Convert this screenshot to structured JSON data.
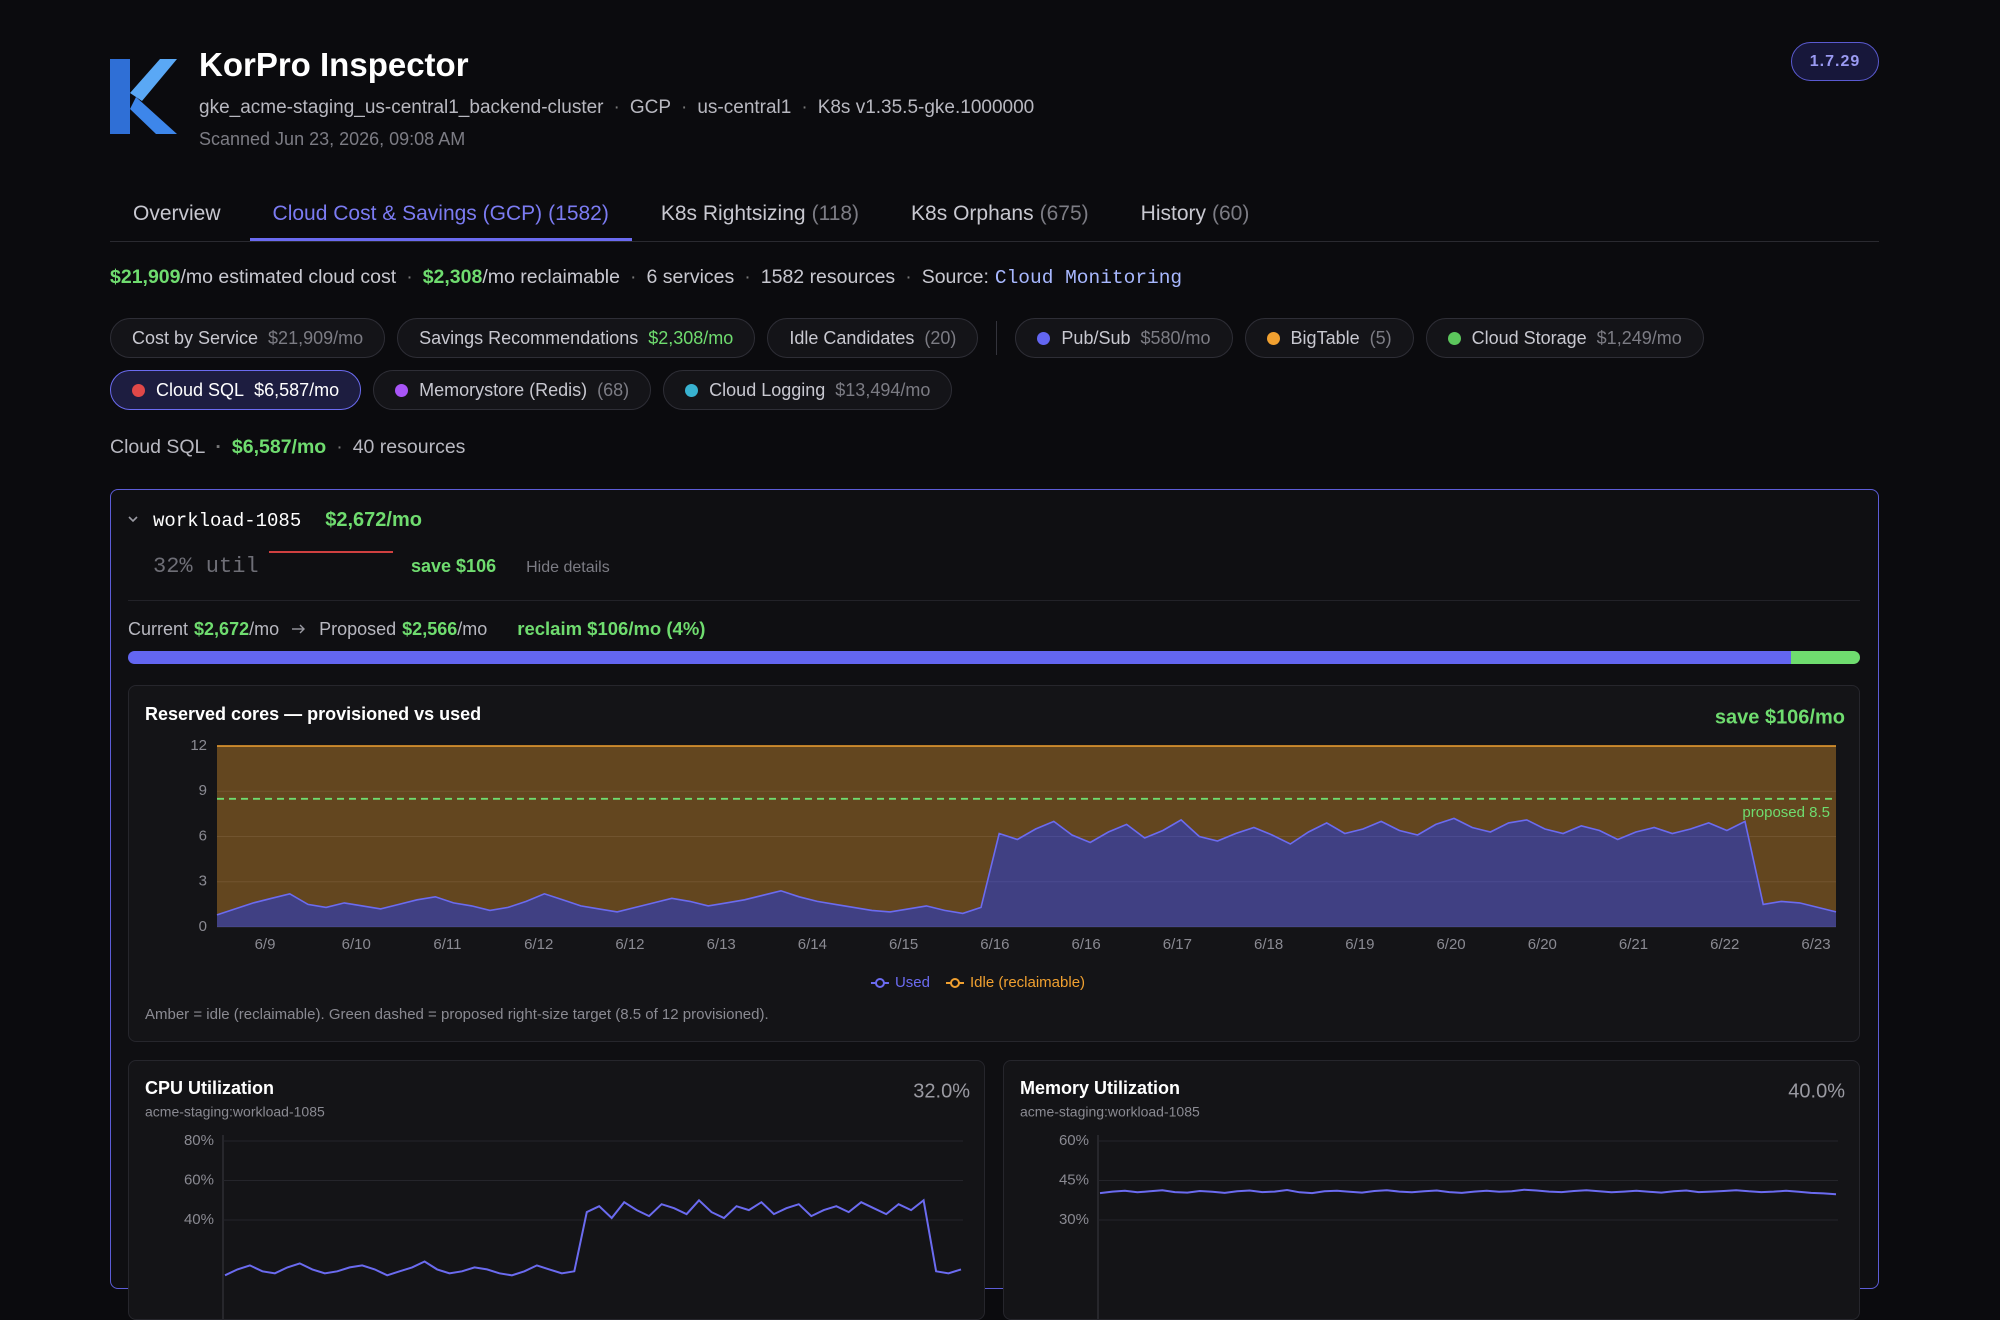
{
  "header": {
    "title": "KorPro Inspector",
    "meta": [
      "gke_acme-staging_us-central1_backend-cluster",
      "GCP",
      "us-central1",
      "K8s v1.35.5-gke.1000000"
    ],
    "scanned": "Scanned Jun 23, 2026, 09:08 AM",
    "version": "1.7.29"
  },
  "tabs": [
    {
      "label": "Overview"
    },
    {
      "label": "Cloud Cost & Savings (GCP)",
      "count": "(1582)",
      "active": true
    },
    {
      "label": "K8s Rightsizing",
      "count": "(118)"
    },
    {
      "label": "K8s Orphans",
      "count": "(675)"
    },
    {
      "label": "History",
      "count": "(60)"
    }
  ],
  "summary": {
    "cost": "$21,909",
    "cost_suffix": "/mo estimated cloud cost",
    "reclaim": "$2,308",
    "reclaim_suffix": "/mo reclaimable",
    "services": "6 services",
    "resources": "1582 resources",
    "source_label": "Source:",
    "source": "Cloud Monitoring"
  },
  "chips": [
    {
      "label": "Cost by Service",
      "value": "$21,909/mo"
    },
    {
      "label": "Savings Recommendations",
      "value": "$2,308/mo",
      "highlight": true
    },
    {
      "label": "Idle Candidates",
      "value": "(20)",
      "separator_after": true
    },
    {
      "label": "Pub/Sub",
      "value": "$580/mo",
      "dot": "#6366f1"
    },
    {
      "label": "BigTable",
      "value": "(5)",
      "dot": "#f0a030"
    },
    {
      "label": "Cloud Storage",
      "value": "$1,249/mo",
      "dot": "#5cc65c"
    },
    {
      "label": "Cloud SQL",
      "value": "$6,587/mo",
      "dot": "#e04848",
      "active": true
    },
    {
      "label": "Memorystore (Redis)",
      "value": "(68)",
      "dot": "#a855f7"
    },
    {
      "label": "Cloud Logging",
      "value": "$13,494/mo",
      "dot": "#38b2d0"
    }
  ],
  "section": {
    "name": "Cloud SQL",
    "cost": "$6,587/mo",
    "resources": "40 resources"
  },
  "workload": {
    "name": "workload-1085",
    "cost": "$2,672/mo",
    "util": "32% util",
    "save": "save $106",
    "toggle": "Hide details",
    "current_label": "Current",
    "current": "$2,672",
    "per": "/mo",
    "proposed_label": "Proposed",
    "proposed": "$2,566",
    "reclaim": "reclaim $106/mo (4%)"
  },
  "progress": {
    "proposed": 2566,
    "reclaim": 106,
    "color": "#6366f1",
    "reclaim_color": "#6fdc6f"
  },
  "chart_data": [
    {
      "type": "area",
      "title": "Reserved cores — provisioned vs used",
      "annotation": "save $106/mo",
      "series": [
        {
          "name": "Used",
          "color": "#6b6bf0",
          "values": [
            0.8,
            1.2,
            1.6,
            1.9,
            2.2,
            1.5,
            1.3,
            1.6,
            1.4,
            1.2,
            1.5,
            1.8,
            2.0,
            1.6,
            1.4,
            1.1,
            1.3,
            1.7,
            2.2,
            1.8,
            1.4,
            1.2,
            1.0,
            1.3,
            1.6,
            1.9,
            1.7,
            1.4,
            1.6,
            1.8,
            2.1,
            2.4,
            2.0,
            1.7,
            1.5,
            1.3,
            1.1,
            1.0,
            1.2,
            1.4,
            1.1,
            0.9,
            1.3,
            6.2,
            5.8,
            6.5,
            7.0,
            6.1,
            5.6,
            6.3,
            6.8,
            5.9,
            6.4,
            7.1,
            6.0,
            5.7,
            6.2,
            6.6,
            6.1,
            5.5,
            6.3,
            6.9,
            6.2,
            6.5,
            7.0,
            6.4,
            6.1,
            6.8,
            7.2,
            6.6,
            6.3,
            6.9,
            7.1,
            6.5,
            6.2,
            6.7,
            6.4,
            5.8,
            6.3,
            6.6,
            6.2,
            6.5,
            6.9,
            6.4,
            7.0,
            1.5,
            1.7,
            1.6,
            1.3,
            1.0
          ]
        }
      ],
      "idle": {
        "name": "Idle (reclaimable)",
        "color": "#f0a030"
      },
      "provisioned": 12,
      "proposed": 8.5,
      "proposed_label": "proposed 8.5",
      "proposed_color": "#6fdc6f",
      "ylim": [
        0,
        12
      ],
      "yticks": [
        0,
        3,
        6,
        9,
        12
      ],
      "xtick_labels": [
        "6/9",
        "6/10",
        "6/11",
        "6/12",
        "6/12",
        "6/13",
        "6/14",
        "6/15",
        "6/16",
        "6/16",
        "6/17",
        "6/18",
        "6/19",
        "6/20",
        "6/20",
        "6/21",
        "6/22",
        "6/23"
      ],
      "grid": true,
      "note": "Amber = idle (reclaimable). Green dashed = proposed right-size target (8.5 of 12 provisioned)."
    },
    {
      "type": "line",
      "title": "CPU Utilization",
      "subtitle": "acme-staging:workload-1085",
      "value_label": "32.0%",
      "color": "#6b6bf0",
      "values": [
        12,
        15,
        17,
        14,
        13,
        16,
        18,
        15,
        13,
        14,
        16,
        17,
        15,
        12,
        14,
        16,
        19,
        15,
        13,
        14,
        16,
        15,
        13,
        12,
        14,
        17,
        15,
        13,
        14,
        44,
        47,
        41,
        49,
        45,
        42,
        48,
        46,
        43,
        50,
        44,
        41,
        47,
        45,
        49,
        43,
        46,
        48,
        42,
        45,
        47,
        44,
        49,
        46,
        43,
        48,
        45,
        50,
        14,
        13,
        15
      ],
      "ylim": [
        0,
        80
      ],
      "yticks": [
        {
          "value": 80,
          "label": "80%"
        },
        {
          "value": 60,
          "label": "60%"
        },
        {
          "value": 40,
          "label": "40%"
        }
      ],
      "grid": true
    },
    {
      "type": "line",
      "title": "Memory Utilization",
      "subtitle": "acme-staging:workload-1085",
      "value_label": "40.0%",
      "color": "#6b6bf0",
      "values": [
        40.2,
        40.8,
        41.1,
        40.5,
        40.9,
        41.3,
        40.6,
        40.4,
        41.0,
        40.7,
        40.3,
        40.9,
        41.2,
        40.6,
        40.8,
        41.4,
        40.5,
        40.2,
        40.9,
        41.1,
        40.7,
        40.4,
        41.0,
        41.3,
        40.8,
        40.5,
        40.9,
        41.2,
        40.6,
        40.3,
        40.8,
        41.1,
        40.7,
        40.9,
        41.5,
        41.2,
        40.8,
        40.6,
        41.0,
        41.3,
        40.9,
        40.5,
        40.8,
        41.1,
        40.7,
        40.4,
        40.9,
        41.2,
        40.6,
        40.8,
        41.0,
        41.3,
        40.9,
        40.6,
        40.8,
        41.1,
        40.7,
        40.3,
        40.1,
        39.8
      ],
      "ylim": [
        0,
        60
      ],
      "yticks": [
        {
          "value": 60,
          "label": "60%"
        },
        {
          "value": 45,
          "label": "45%"
        },
        {
          "value": 30,
          "label": "30%"
        }
      ],
      "grid": true
    }
  ]
}
